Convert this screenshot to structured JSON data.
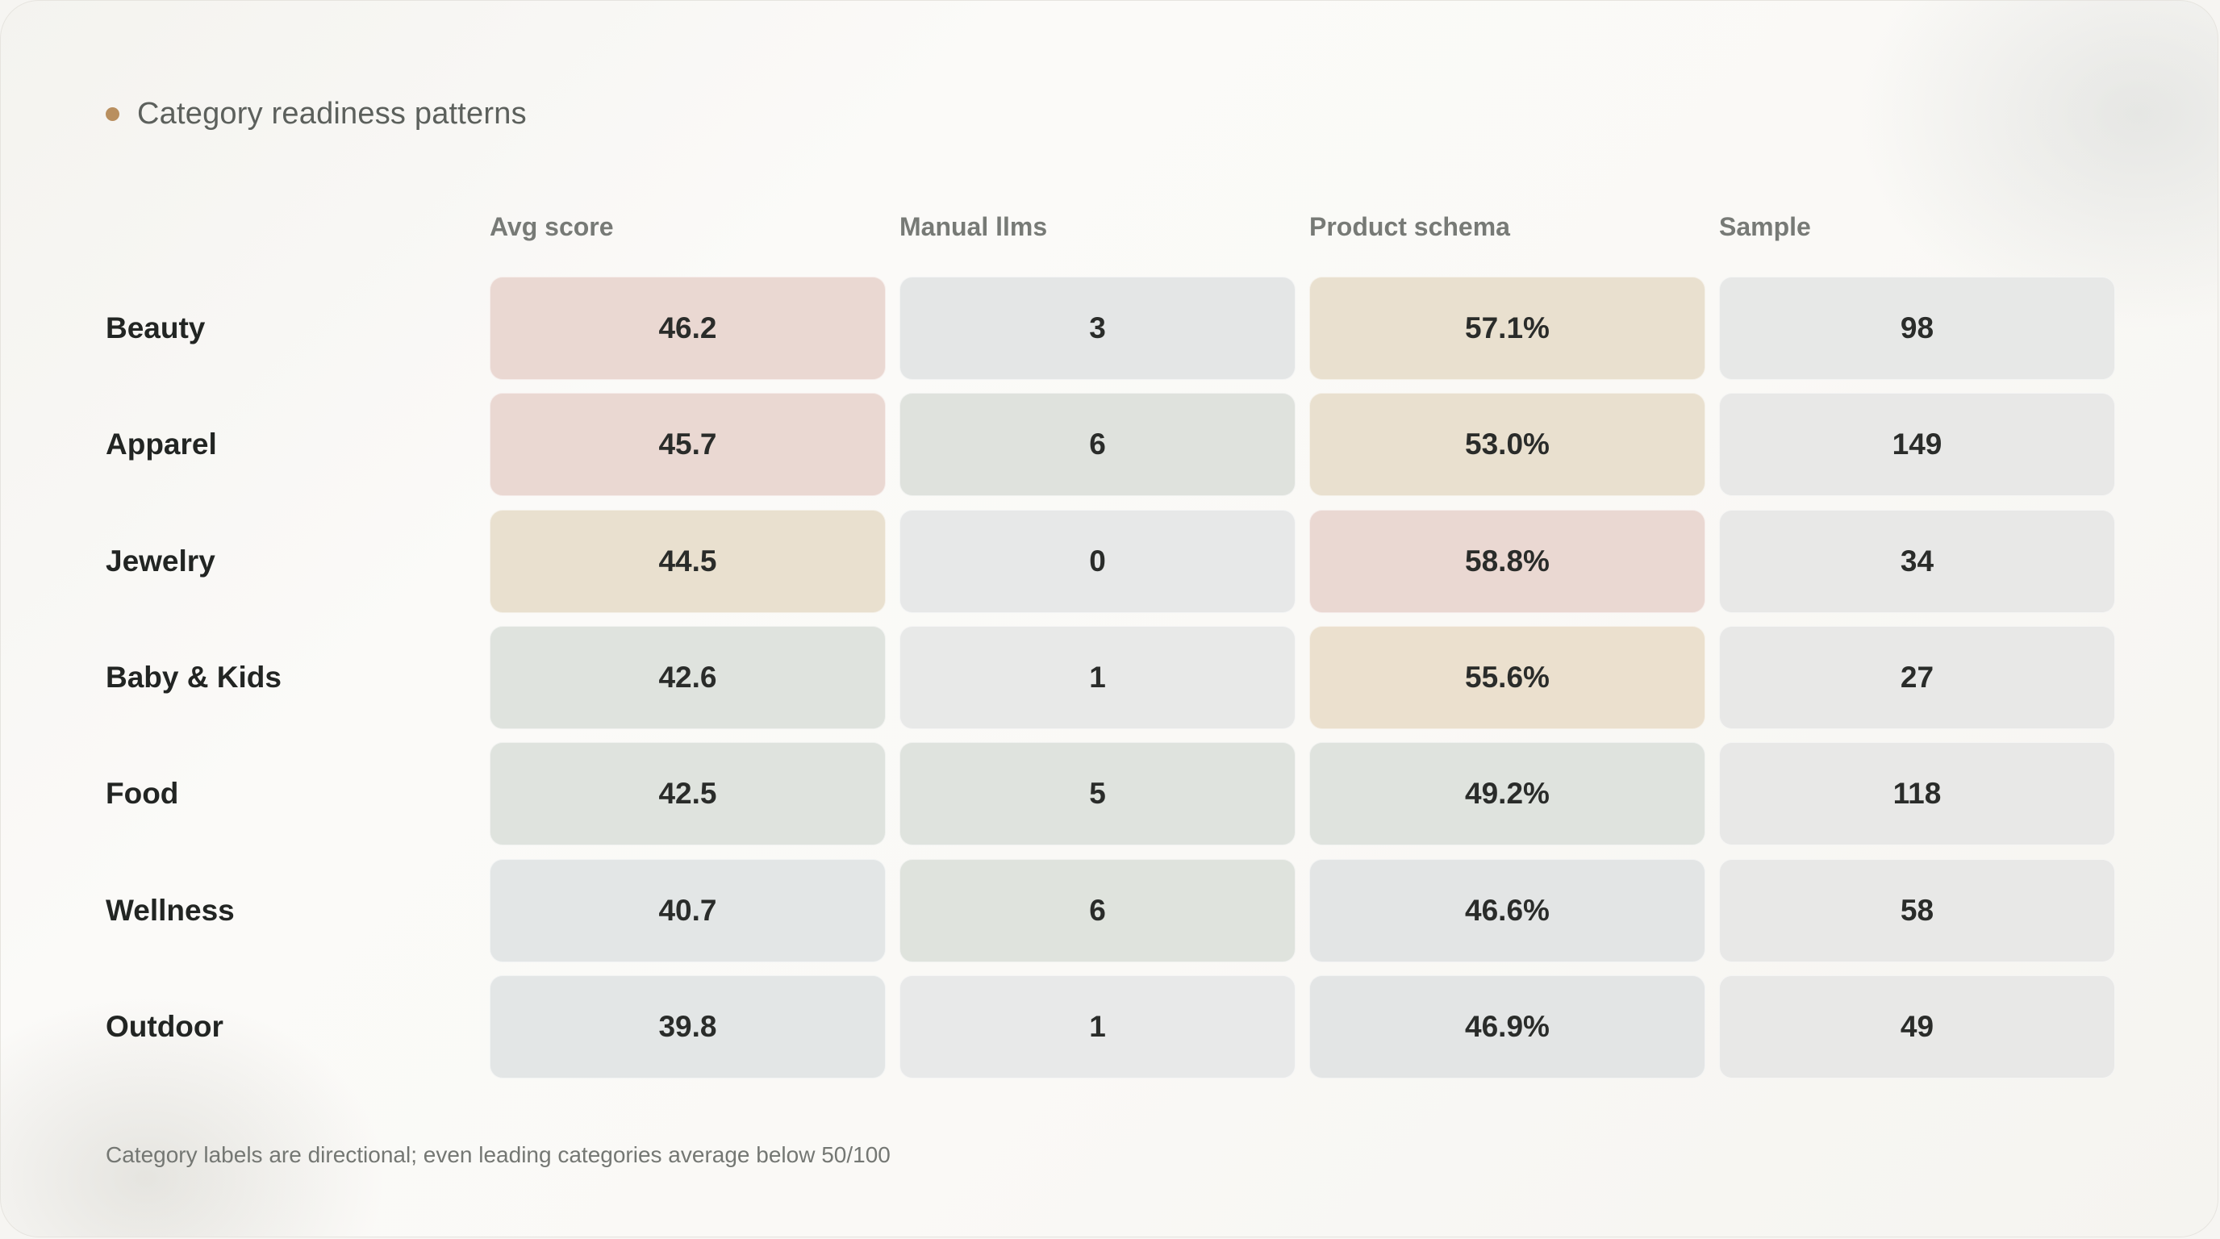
{
  "title": "Category readiness patterns",
  "chart_data": {
    "type": "table",
    "title": "Category readiness patterns",
    "columns": [
      "Avg score",
      "Manual llms",
      "Product schema",
      "Sample"
    ],
    "rows": [
      {
        "category": "Beauty",
        "avg_score": "46.2",
        "manual_llms": "3",
        "product_schema": "57.1%",
        "sample": "98"
      },
      {
        "category": "Apparel",
        "avg_score": "45.7",
        "manual_llms": "6",
        "product_schema": "53.0%",
        "sample": "149"
      },
      {
        "category": "Jewelry",
        "avg_score": "44.5",
        "manual_llms": "0",
        "product_schema": "58.8%",
        "sample": "34"
      },
      {
        "category": "Baby & Kids",
        "avg_score": "42.6",
        "manual_llms": "1",
        "product_schema": "55.6%",
        "sample": "27"
      },
      {
        "category": "Food",
        "avg_score": "42.5",
        "manual_llms": "5",
        "product_schema": "49.2%",
        "sample": "118"
      },
      {
        "category": "Wellness",
        "avg_score": "40.7",
        "manual_llms": "6",
        "product_schema": "46.6%",
        "sample": "58"
      },
      {
        "category": "Outdoor",
        "avg_score": "39.8",
        "manual_llms": "1",
        "product_schema": "46.9%",
        "sample": "49"
      }
    ],
    "cell_colors": [
      [
        "#ead8d2",
        "#e4e6e6",
        "#e9e0cf",
        "#e7e8e7"
      ],
      [
        "#ead8d2",
        "#dfe2dd",
        "#e9e0cf",
        "#e8e8e7"
      ],
      [
        "#e9e0cf",
        "#e7e8e8",
        "#ead8d2",
        "#e8e8e7"
      ],
      [
        "#dfe3de",
        "#e8e9e8",
        "#ebe0ce",
        "#e8e8e7"
      ],
      [
        "#dfe3de",
        "#dfe3de",
        "#dfe3de",
        "#e8e8e7"
      ],
      [
        "#e3e6e6",
        "#dfe3dd",
        "#e3e5e5",
        "#e8e8e7"
      ],
      [
        "#e3e6e6",
        "#e8e9e9",
        "#e3e5e5",
        "#e8e8e7"
      ]
    ]
  },
  "footnote": "Category labels are directional; even leading categories average below 50/100"
}
